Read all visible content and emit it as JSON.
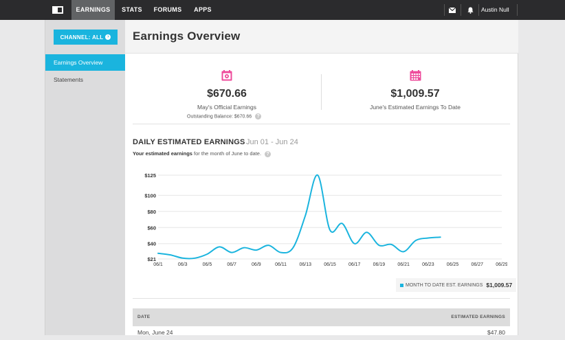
{
  "nav": {
    "items": [
      {
        "label": "EARNINGS",
        "active": true
      },
      {
        "label": "STATS",
        "active": false
      },
      {
        "label": "FORUMS",
        "active": false
      },
      {
        "label": "APPS",
        "active": false
      }
    ],
    "mail_icon": "mail-icon",
    "bell_icon": "bell-icon",
    "user_name": "Austin Null"
  },
  "sidebar": {
    "channel_button": "CHANNEL: ALL",
    "items": [
      {
        "label": "Earnings Overview",
        "active": true
      },
      {
        "label": "Statements",
        "active": false
      }
    ]
  },
  "page": {
    "title": "Earnings Overview"
  },
  "stats": {
    "left": {
      "icon": "calendar-icon",
      "value": "$670.66",
      "label": "May's Official Earnings",
      "sub": "Outstanding Balance: $670.66"
    },
    "right": {
      "icon": "calendar-grid-icon",
      "value": "$1,009.57",
      "label": "June's Estimated Earnings To Date"
    }
  },
  "daily": {
    "title": "DAILY ESTIMATED EARNINGS",
    "range": "Jun 01 - Jun 24",
    "desc_bold": "Your estimated earnings",
    "desc_rest": " for the month of June to date."
  },
  "legend": {
    "label": "MONTH TO DATE EST. EARNINGS",
    "value": "$1,009.57"
  },
  "table": {
    "headers": {
      "date": "DATE",
      "earnings": "ESTIMATED EARNINGS"
    },
    "rows": [
      {
        "date": "Mon, June 24",
        "earnings": "$47.80"
      }
    ]
  },
  "colors": {
    "accent": "#1ab4de",
    "icon_pink": "#ee4b9b",
    "topbar": "#2b2b2d"
  },
  "chart_data": {
    "type": "line",
    "x_ticks": [
      "06/1",
      "06/3",
      "06/5",
      "06/7",
      "06/9",
      "06/11",
      "06/13",
      "06/15",
      "06/17",
      "06/19",
      "06/21",
      "06/23",
      "06/25",
      "06/27",
      "06/29"
    ],
    "y_ticks": [
      "$21",
      "$40",
      "$60",
      "$80",
      "$100",
      "$125"
    ],
    "y_tick_values": [
      21,
      40,
      60,
      80,
      100,
      125
    ],
    "ylim": [
      21,
      125
    ],
    "xlim": [
      1,
      29
    ],
    "series": [
      {
        "name": "MONTH TO DATE EST. EARNINGS",
        "x": [
          1,
          2,
          3,
          4,
          5,
          6,
          7,
          8,
          9,
          10,
          11,
          12,
          13,
          14,
          15,
          16,
          17,
          18,
          19,
          20,
          21,
          22,
          23,
          24
        ],
        "values": [
          28,
          26,
          22,
          22,
          27,
          36,
          29,
          35,
          32,
          38,
          29,
          35,
          75,
          125,
          57,
          65,
          40,
          54,
          38,
          39,
          30,
          44,
          47,
          48
        ]
      }
    ],
    "grid": true
  }
}
